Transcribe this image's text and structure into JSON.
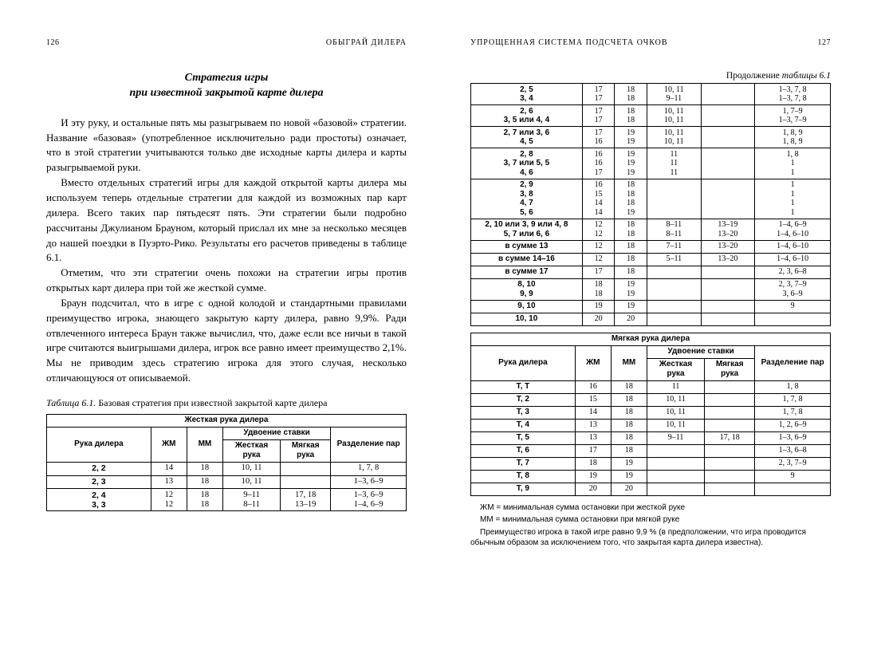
{
  "left": {
    "page_num": "126",
    "running_title": "ОБЫГРАЙ ДИЛЕРА",
    "section_title_l1": "Стратегия игры",
    "section_title_l2": "при известной закрытой карте дилера",
    "paragraphs": [
      "И эту руку, и остальные пять мы разыгрываем по новой «базовой» стратегии. Название «базовая» (употребленное исключительно ради простоты) означает, что в этой стратегии учитываются только две исходные карты дилера и карты разыгрываемой руки.",
      "Вместо отдельных стратегий игры для каждой открытой карты дилера мы используем теперь отдельные стратегии для каждой из возможных пар карт дилера. Всего таких пар пятьдесят пять. Эти стратегии были подробно рассчитаны Джулианом Брауном, который прислал их мне за несколько месяцев до нашей поездки в Пуэрто-Рико. Результаты его расчетов приведены в таблице 6.1.",
      "Отметим, что эти стратегии очень похожи на стратегии игры против открытых карт дилера при той же жесткой сумме.",
      "Браун подсчитал, что в игре с одной колодой и стандартными правилами преимущество игрока, знающего закрытую карту дилера, равно 9,9%. Ради отвлеченного интереса Браун также вычислил, что, даже если все ничьи в такой игре считаются выигрышами дилера, игрок все равно имеет преимущество 2,1%. Мы не приводим здесь стратегию игрока для этого случая, несколько отличающуюся от описываемой."
    ],
    "table_caption_label": "Таблица 6.1.",
    "table_caption_text": "Базовая стратегия при известной закрытой карте дилера",
    "table1": {
      "super_head": "Жесткая рука дилера",
      "doubling_head": "Удвоение ставки",
      "cols": [
        "Рука дилера",
        "ЖМ",
        "ММ",
        "Жесткая рука",
        "Мягкая рука",
        "Разделение пар"
      ],
      "rows": [
        [
          "2, 2",
          "14",
          "18",
          "10, 11",
          "",
          "1, 7, 8"
        ],
        [
          "2, 3",
          "13",
          "18",
          "10, 11",
          "",
          "1–3, 6–9"
        ],
        [
          "2, 4\n3, 3",
          "12\n12",
          "18\n18",
          "9–11\n8–11",
          "17, 18\n13–19",
          "1–3, 6–9\n1–4, 6–9"
        ]
      ]
    }
  },
  "right": {
    "page_num": "127",
    "running_title": "УПРОЩЕННАЯ СИСТЕМА ПОДСЧЕТА ОЧКОВ",
    "cont_caption_prefix": "Продолжение ",
    "cont_caption_italic": "таблицы 6.1",
    "cont_rows": [
      [
        "2, 5\n3, 4",
        "17\n17",
        "18\n18",
        "10, 11\n9–11",
        "",
        "1–3, 7, 8\n1–3, 7, 8"
      ],
      [
        "2, 6\n3, 5 или 4, 4",
        "17\n17",
        "18\n18",
        "10, 11\n10, 11",
        "",
        "1, 7–9\n1–3, 7–9"
      ],
      [
        "2, 7 или 3, 6\n4, 5",
        "17\n16",
        "19\n19",
        "10, 11\n10, 11",
        "",
        "1, 8, 9\n1, 8, 9"
      ],
      [
        "2, 8\n3, 7 или 5, 5\n4, 6",
        "16\n16\n17",
        "19\n19\n19",
        "11\n11\n11",
        "",
        "1, 8\n1\n1"
      ],
      [
        "2, 9\n3, 8\n4, 7\n5, 6",
        "16\n15\n14\n14",
        "18\n18\n18\n19",
        "",
        "",
        "1\n1\n1\n1"
      ],
      [
        "2, 10 или 3, 9 или 4, 8\n5, 7 или 6, 6",
        "12\n12",
        "18\n18",
        "8–11\n8–11",
        "13–19\n13–20",
        "1–4, 6–9\n1–4, 6–10"
      ],
      [
        "в сумме 13",
        "12",
        "18",
        "7–11",
        "13–20",
        "1–4, 6–10"
      ],
      [
        "в сумме 14–16",
        "12",
        "18",
        "5–11",
        "13–20",
        "1–4, 6–10"
      ],
      [
        "в сумме 17",
        "17",
        "18",
        "",
        "",
        "2, 3, 6–8"
      ],
      [
        "8, 10\n9, 9",
        "18\n18",
        "19\n19",
        "",
        "",
        "2, 3, 7–9\n3, 6–9"
      ],
      [
        "9, 10",
        "19",
        "19",
        "",
        "",
        "9"
      ],
      [
        "10, 10",
        "20",
        "20",
        "",
        "",
        ""
      ]
    ],
    "table2": {
      "super_head": "Мягкая рука дилера",
      "doubling_head": "Удвоение ставки",
      "cols": [
        "Рука дилера",
        "ЖМ",
        "ММ",
        "Жесткая рука",
        "Мягкая рука",
        "Разделение пар"
      ],
      "rows": [
        [
          "Т, Т",
          "16",
          "18",
          "11",
          "",
          "1, 8"
        ],
        [
          "Т, 2",
          "15",
          "18",
          "10, 11",
          "",
          "1, 7, 8"
        ],
        [
          "Т, 3",
          "14",
          "18",
          "10, 11",
          "",
          "1, 7, 8"
        ],
        [
          "Т, 4",
          "13",
          "18",
          "10, 11",
          "",
          "1, 2, 6–9"
        ],
        [
          "Т, 5",
          "13",
          "18",
          "9–11",
          "17, 18",
          "1–3, 6–9"
        ],
        [
          "Т, 6",
          "17",
          "18",
          "",
          "",
          "1–3, 6–8"
        ],
        [
          "Т, 7",
          "18",
          "19",
          "",
          "",
          "2, 3, 7–9"
        ],
        [
          "Т, 8",
          "19",
          "19",
          "",
          "",
          "9"
        ],
        [
          "Т, 9",
          "20",
          "20",
          "",
          "",
          ""
        ]
      ]
    },
    "footnotes": [
      "ЖМ = минимальная сумма остановки при жесткой руке",
      "ММ = минимальная сумма остановки при мягкой руке",
      "Преимущество игрока в такой игре равно 9,9 % (в предположении, что игра проводится обычным образом за исключением того, что закрытая карта дилера известна)."
    ]
  },
  "colors": {
    "text": "#000000",
    "bg": "#ffffff",
    "border": "#000000"
  }
}
